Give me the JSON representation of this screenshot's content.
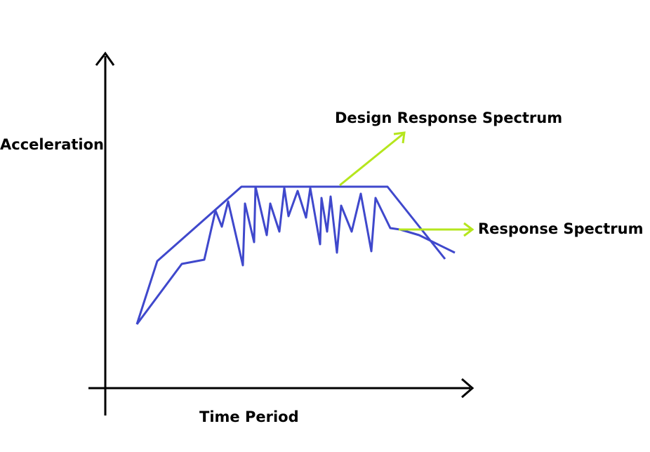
{
  "labels": {
    "y_axis": "Acceleration",
    "x_axis": "Time Period",
    "design_spectrum": "Design Response Spectrum",
    "response_spectrum": "Response Spectrum"
  },
  "colors": {
    "axis": "#000000",
    "curve": "#3f48cc",
    "arrow": "#b5e61d"
  },
  "icons": {
    "axis_arrowheads": "open-chevron-arrow",
    "callout_arrows": "green-arrow"
  }
}
